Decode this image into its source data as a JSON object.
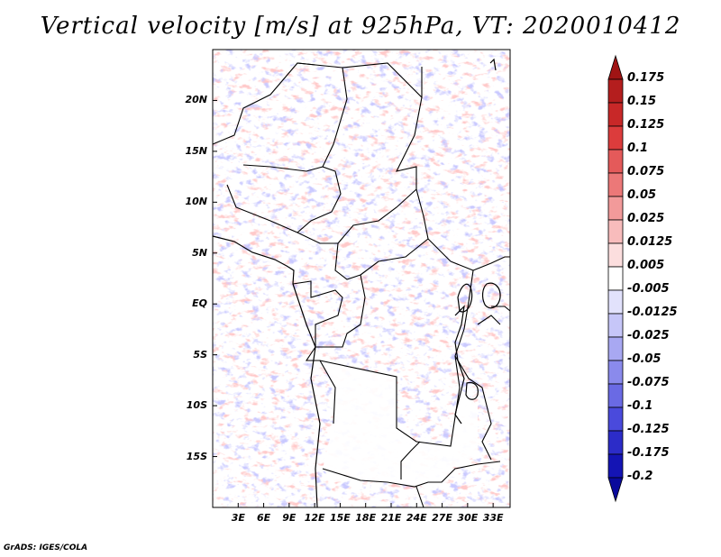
{
  "title": "Vertical velocity [m/s] at 925hPa, VT: 2020010412",
  "credit": "GrADS: IGES/COLA",
  "map": {
    "lat_ticks": [
      "20N",
      "15N",
      "10N",
      "5N",
      "EQ",
      "5S",
      "10S",
      "15S"
    ],
    "lat_values": [
      20,
      15,
      10,
      5,
      0,
      -5,
      -10,
      -15
    ],
    "lon_ticks": [
      "3E",
      "6E",
      "9E",
      "12E",
      "15E",
      "18E",
      "21E",
      "24E",
      "27E",
      "30E",
      "33E"
    ],
    "lon_values": [
      3,
      6,
      9,
      12,
      15,
      18,
      21,
      24,
      27,
      30,
      33
    ],
    "lon_range": [
      0,
      35
    ],
    "lat_range": [
      -20,
      25
    ]
  },
  "colorbar": {
    "labels": [
      "0.175",
      "0.15",
      "0.125",
      "0.1",
      "0.075",
      "0.05",
      "0.025",
      "0.0125",
      "0.005",
      "-0.005",
      "-0.0125",
      "-0.025",
      "-0.05",
      "-0.075",
      "-0.1",
      "-0.125",
      "-0.175",
      "-0.2"
    ],
    "colors": [
      "#a01414",
      "#b41e1e",
      "#c82828",
      "#dc3c3c",
      "#e45a5a",
      "#ec7878",
      "#f29a9a",
      "#f8bcbc",
      "#fcdede",
      "#ffffff",
      "#e2e2fc",
      "#c6c6f8",
      "#a8a8f2",
      "#8a8aec",
      "#6a6ae4",
      "#4a4adc",
      "#2c2cc8",
      "#1414b4",
      "#0a0a9c"
    ]
  }
}
